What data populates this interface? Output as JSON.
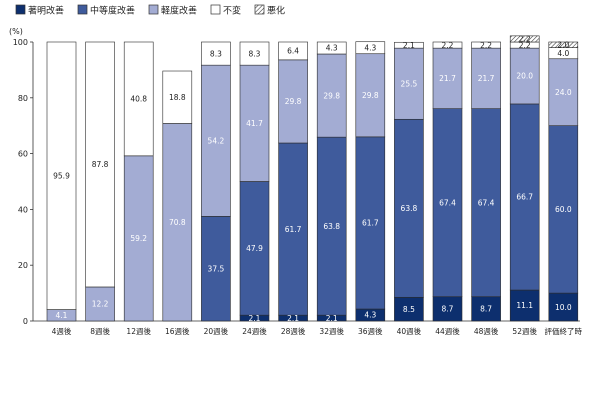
{
  "chart_data": {
    "type": "bar",
    "stacked": true,
    "ylabel": "(%)",
    "ylim": [
      0,
      100
    ],
    "yticks": [
      "0",
      "20",
      "40",
      "60",
      "80",
      "100"
    ],
    "grid": false,
    "legend_position": "top-left",
    "categories": [
      "4週後",
      "8週後",
      "12週後",
      "16週後",
      "20週後",
      "24週後",
      "28週後",
      "32週後",
      "36週後",
      "40週後",
      "44週後",
      "48週後",
      "52週後",
      "評価終了時"
    ],
    "series": [
      {
        "name": "著明改善",
        "color": "#0d2f6e",
        "text_color": "#ffffff",
        "values": [
          0,
          0,
          0,
          0,
          0,
          2.1,
          2.1,
          2.1,
          4.3,
          8.5,
          8.7,
          8.7,
          11.1,
          10.0
        ]
      },
      {
        "name": "中等度改善",
        "color": "#3f5b9c",
        "text_color": "#ffffff",
        "values": [
          0,
          0,
          0,
          0,
          37.5,
          47.9,
          61.7,
          63.8,
          61.7,
          63.8,
          67.4,
          67.4,
          66.7,
          60.0
        ]
      },
      {
        "name": "軽度改善",
        "color": "#a3acd3",
        "text_color": "#ffffff",
        "values": [
          4.1,
          12.2,
          59.2,
          70.8,
          54.2,
          41.7,
          29.8,
          29.8,
          29.8,
          25.5,
          21.7,
          21.7,
          20.0,
          24.0
        ]
      },
      {
        "name": "不変",
        "color": "#ffffff",
        "text_color": "#222222",
        "values": [
          95.9,
          87.8,
          40.8,
          18.8,
          8.3,
          8.3,
          6.4,
          4.3,
          4.3,
          2.1,
          2.2,
          2.2,
          2.2,
          4.0
        ]
      },
      {
        "name": "悪化",
        "color": "hatch",
        "text_color": "#222222",
        "values": [
          0,
          0,
          0,
          0,
          0,
          0,
          0,
          0,
          0,
          0,
          0,
          0,
          2.2,
          2.0
        ]
      }
    ],
    "data_labels": [
      [
        "",
        "",
        "4.1",
        "95.9",
        ""
      ],
      [
        "",
        "",
        "12.2",
        "87.8",
        ""
      ],
      [
        "",
        "",
        "59.2",
        "40.8",
        ""
      ],
      [
        "",
        "",
        "70.8",
        "18.8",
        ""
      ],
      [
        "",
        "37.5",
        "54.2",
        "8.3",
        ""
      ],
      [
        "2.1",
        "47.9",
        "41.7",
        "8.3",
        ""
      ],
      [
        "2.1",
        "61.7",
        "29.8",
        "6.4",
        ""
      ],
      [
        "2.1",
        "63.8",
        "29.8",
        "4.3",
        ""
      ],
      [
        "4.3",
        "61.7",
        "29.8",
        "4.3",
        ""
      ],
      [
        "8.5",
        "63.8",
        "25.5",
        "2.1",
        ""
      ],
      [
        "8.7",
        "67.4",
        "21.7",
        "2.2",
        ""
      ],
      [
        "8.7",
        "67.4",
        "21.7",
        "2.2",
        ""
      ],
      [
        "11.1",
        "66.7",
        "20.0",
        "2.2",
        "2.2"
      ],
      [
        "10.0",
        "60.0",
        "24.0",
        "4.0",
        "2.0"
      ]
    ]
  }
}
